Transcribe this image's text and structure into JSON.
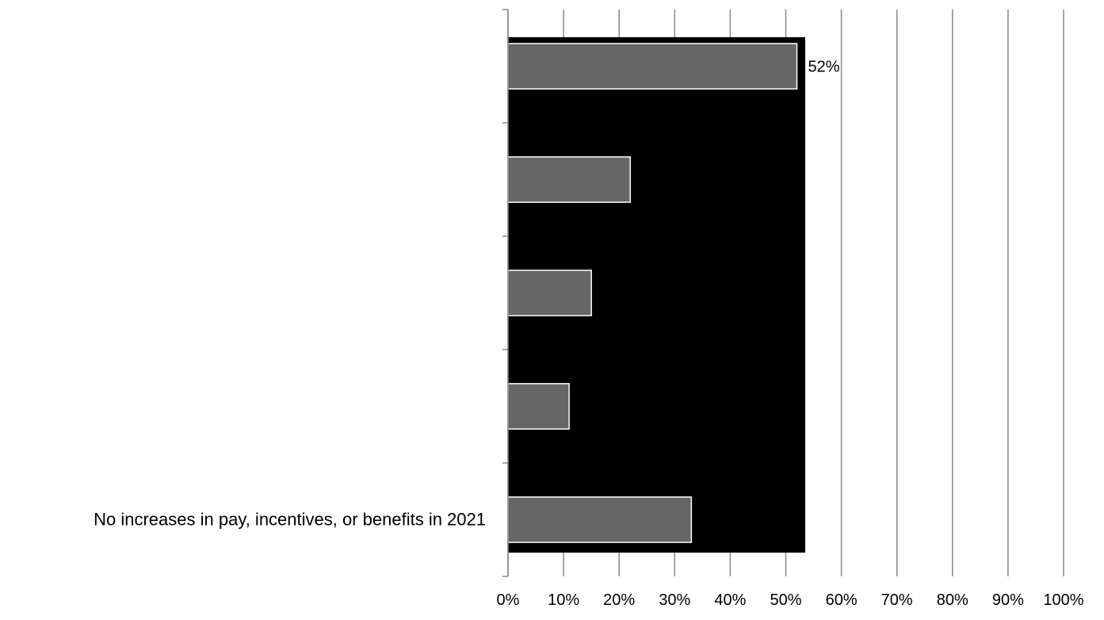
{
  "chart_data": {
    "type": "bar",
    "orientation": "horizontal",
    "categories": [
      "",
      "",
      "",
      "",
      "No increases in pay, incentives, or benefits in 2021"
    ],
    "values": [
      52,
      22,
      15,
      11,
      33
    ],
    "data_labels": [
      "52%",
      "",
      "",
      "",
      ""
    ],
    "xlim": [
      0,
      100
    ],
    "xticks": [
      "0%",
      "10%",
      "20%",
      "30%",
      "40%",
      "50%",
      "60%",
      "70%",
      "80%",
      "90%",
      "100%"
    ],
    "grid": "vertical",
    "title": "",
    "xlabel": "",
    "ylabel": "",
    "colors": {
      "bar_fill": "#666666",
      "bar_stroke": "#ffffff",
      "gridline": "#888888",
      "axis": "#888888",
      "text": "#000000",
      "black_fill": "#000000"
    }
  }
}
